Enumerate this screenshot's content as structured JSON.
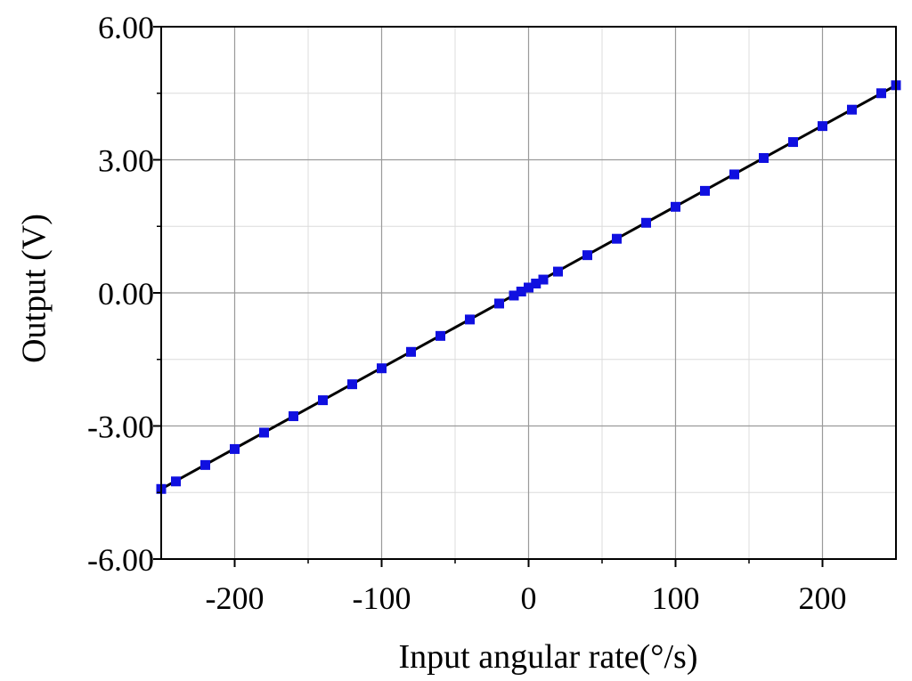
{
  "chart_data": {
    "type": "scatter",
    "title": "",
    "xlabel": "Input angular rate(°/s)",
    "ylabel": "Output (V)",
    "xlim": [
      -250,
      250
    ],
    "ylim": [
      -6,
      6
    ],
    "x_ticks": [
      -200,
      -100,
      0,
      100,
      200
    ],
    "x_tick_labels": [
      "-200",
      "-100",
      "0",
      "100",
      "200"
    ],
    "y_ticks": [
      -6,
      -3,
      0,
      3,
      6
    ],
    "y_tick_labels": [
      "-6.00",
      "-3.00",
      "0.00",
      "3.00",
      "6.00"
    ],
    "grid": true,
    "minor_grid": true,
    "legend": "none",
    "colors": {
      "points": "#1010e0",
      "fit_line": "#000000",
      "grid": "#9a9a9a",
      "minor_grid": "#dcdcdc",
      "axes": "#000000"
    },
    "series": [
      {
        "marker": "square",
        "x": [
          -250,
          -240,
          -220,
          -200,
          -180,
          -160,
          -140,
          -120,
          -100,
          -80,
          -60,
          -40,
          -20,
          -10,
          -5,
          0,
          5,
          10,
          20,
          40,
          60,
          80,
          100,
          120,
          140,
          160,
          180,
          200,
          220,
          240,
          250
        ],
        "y": [
          -4.42,
          -4.25,
          -3.88,
          -3.52,
          -3.15,
          -2.78,
          -2.42,
          -2.06,
          -1.7,
          -1.33,
          -0.97,
          -0.6,
          -0.24,
          -0.06,
          0.03,
          0.12,
          0.21,
          0.3,
          0.48,
          0.85,
          1.22,
          1.58,
          1.94,
          2.3,
          2.67,
          3.04,
          3.4,
          3.76,
          4.13,
          4.5,
          4.68
        ]
      }
    ],
    "fit_line": {
      "x": [
        -250,
        250
      ],
      "y": [
        -4.42,
        4.68
      ]
    }
  }
}
